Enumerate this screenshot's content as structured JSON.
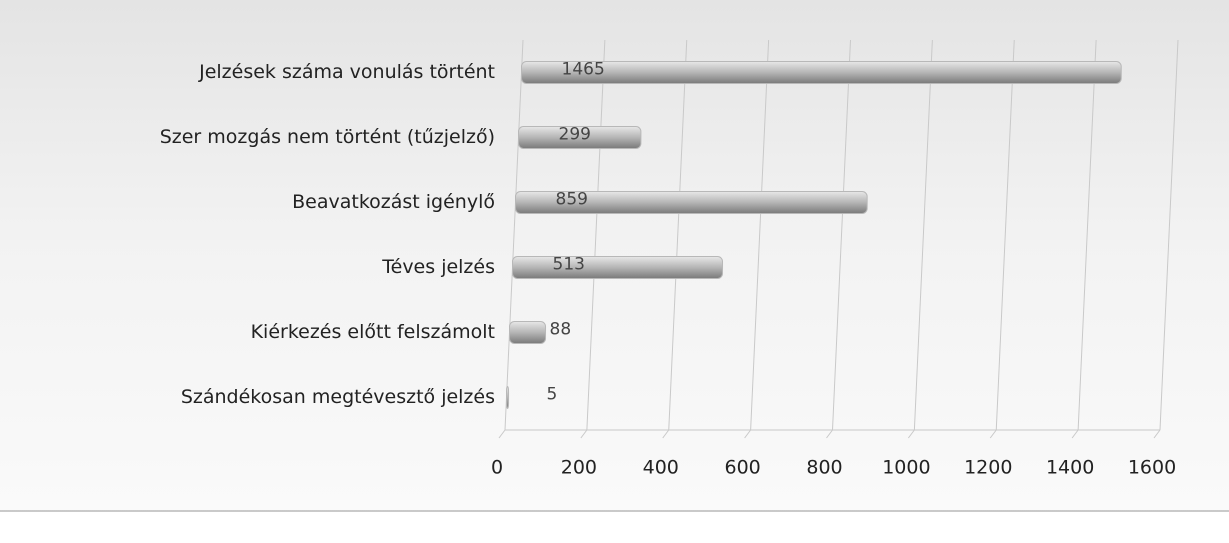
{
  "chart_data": {
    "type": "bar",
    "orientation": "horizontal",
    "categories": [
      "Jelzések száma vonulás történt",
      "Szer mozgás nem történt (tűzjelző)",
      "Beavatkozást igénylő",
      "Téves jelzés",
      "Kiérkezés előtt felszámolt",
      "Szándékosan megtévesztő jelzés"
    ],
    "values": [
      1465,
      299,
      859,
      513,
      88,
      5
    ],
    "color": "#b8b8b8",
    "xlim": [
      0,
      1600
    ],
    "xticks": [
      0,
      200,
      400,
      600,
      800,
      1000,
      1200,
      1400,
      1600
    ],
    "grid": true
  }
}
